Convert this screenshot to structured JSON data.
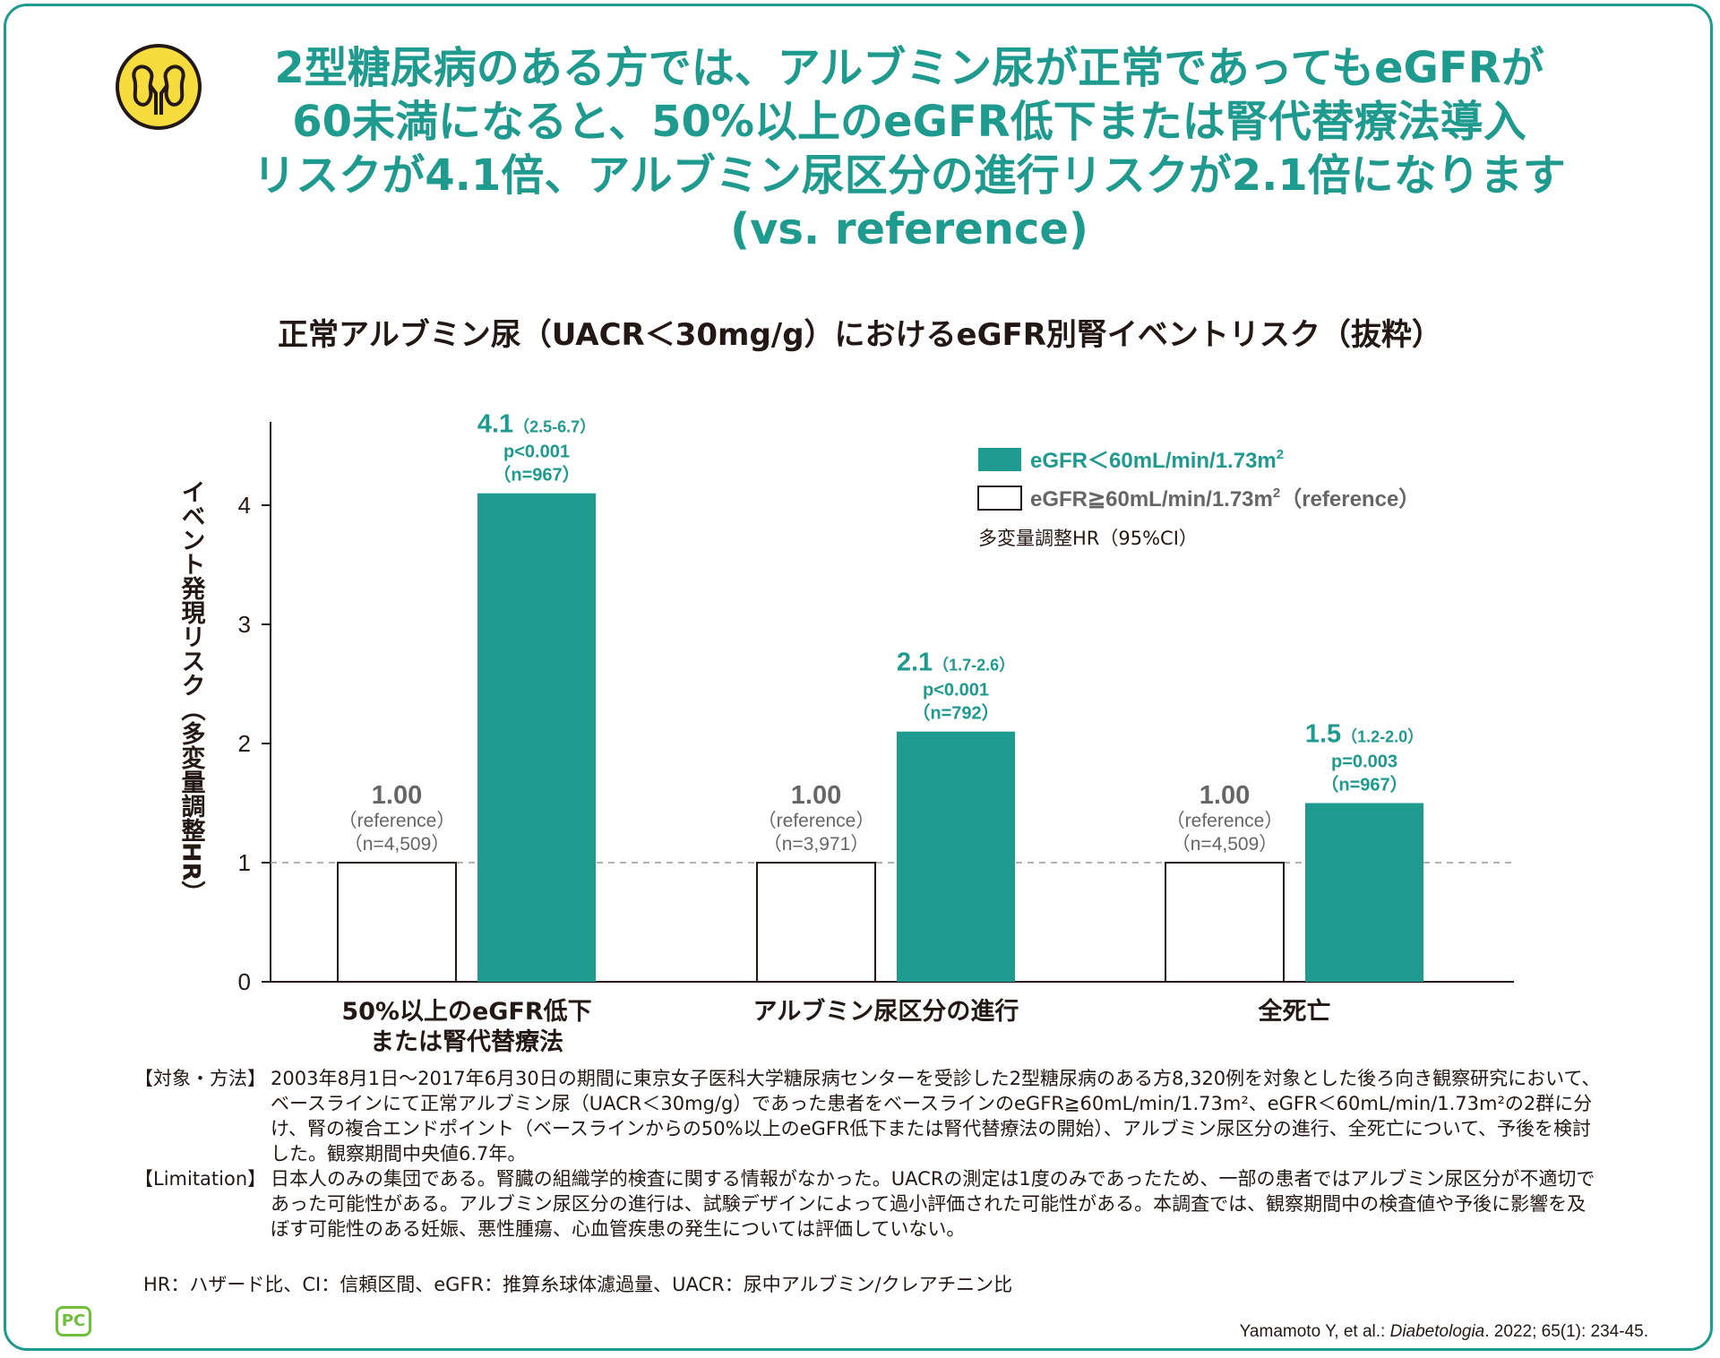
{
  "colors": {
    "accent": "#1f9a8f",
    "text": "#231815",
    "gray": "#666666",
    "kidney_bg": "#f6dc3d"
  },
  "header": {
    "icon": "kidney-icon",
    "title_lines": [
      "2型糖尿病のある方では、アルブミン尿が正常であってもeGFRが",
      "60未満になると、50%以上のeGFR低下または腎代替療法導入",
      "リスクが4.1倍、アルブミン尿区分の進行リスクが2.1倍になります",
      "(vs. reference)"
    ]
  },
  "chart_data": {
    "type": "bar",
    "title": "正常アルブミン尿（UACR＜30mg/g）におけるeGFR別腎イベントリスク（抜粋）",
    "ylabel": "イベント発現リスク（多変量調整HR）",
    "ylim": [
      0,
      4.7
    ],
    "yticks": [
      0,
      1,
      2,
      3,
      4
    ],
    "reference_line": 1,
    "categories": [
      {
        "label_lines": [
          "50%以上のeGFR低下",
          "または腎代替療法"
        ]
      },
      {
        "label_lines": [
          "アルブミン尿区分の進行"
        ]
      },
      {
        "label_lines": [
          "全死亡"
        ]
      }
    ],
    "series": [
      {
        "name": "eGFR≧60mL/min/1.73m²（reference）",
        "legend_main": "eGFR≧60mL/min/1.73m",
        "legend_suffix": "（reference）",
        "values": [
          1.0,
          1.0,
          1.0
        ],
        "labels": [
          {
            "value": "1.00",
            "ref": "（reference）",
            "n": "（n=4,509）"
          },
          {
            "value": "1.00",
            "ref": "（reference）",
            "n": "（n=3,971）"
          },
          {
            "value": "1.00",
            "ref": "（reference）",
            "n": "（n=4,509）"
          }
        ]
      },
      {
        "name": "eGFR＜60mL/min/1.73m²",
        "legend_main": "eGFR＜60mL/min/1.73m",
        "legend_suffix": "",
        "values": [
          4.1,
          2.1,
          1.5
        ],
        "labels": [
          {
            "value": "4.1",
            "ci": "（2.5-6.7）",
            "p": "p<0.001",
            "n": "（n=967）"
          },
          {
            "value": "2.1",
            "ci": "（1.7-2.6）",
            "p": "p<0.001",
            "n": "（n=792）"
          },
          {
            "value": "1.5",
            "ci": "（1.2-2.0）",
            "p": "p=0.003",
            "n": "（n=967）"
          }
        ]
      }
    ],
    "legend_note": "多変量調整HR（95%CI）"
  },
  "notes": [
    {
      "label": "【対象・方法】",
      "text": "2003年8月1日～2017年6月30日の期間に東京女子医科大学糖尿病センターを受診した2型糖尿病のある方8,320例を対象とした後ろ向き観察研究において、ベースラインにて正常アルブミン尿（UACR＜30mg/g）であった患者をベースラインのeGFR≧60mL/min/1.73m²、eGFR＜60mL/min/1.73m²の2群に分け、腎の複合エンドポイント（ベースラインからの50%以上のeGFR低下または腎代替療法の開始）、アルブミン尿区分の進行、全死亡について、予後を検討した。観察期間中央値6.7年。"
    },
    {
      "label": "【Limitation】",
      "text": "日本人のみの集団である。腎臓の組織学的検査に関する情報がなかった。UACRの測定は1度のみであったため、一部の患者ではアルブミン尿区分が不適切であった可能性がある。アルブミン尿区分の進行は、試験デザインによって過小評価された可能性がある。本調査では、観察期間中の検査値や予後に影響を及ぼす可能性のある妊娠、悪性腫瘍、心血管疾患の発生については評価していない。"
    }
  ],
  "abbreviations": "HR：ハザード比、CI：信頼区間、eGFR：推算糸球体濾過量、UACR：尿中アルブミン/クレアチニン比",
  "footer": {
    "logo": "PC",
    "citation_pre": "Yamamoto Y, et al.: ",
    "citation_journal": "Diabetologia",
    "citation_post": ". 2022; 65(1): 234-45."
  }
}
